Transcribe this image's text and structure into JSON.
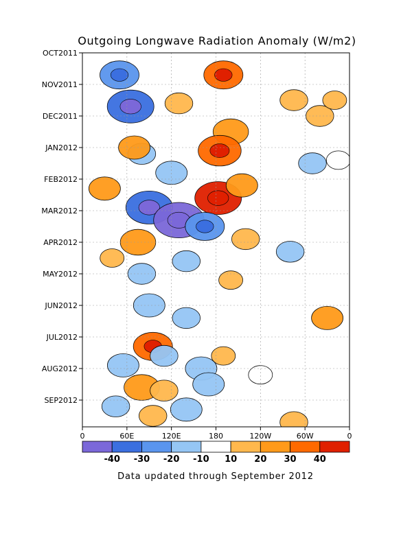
{
  "chart_data": {
    "type": "heatmap",
    "title": "Outgoing Longwave Radiation Anomaly (W/m2)",
    "xlabel": "",
    "ylabel": "",
    "x_tick_labels": [
      "0",
      "60E",
      "120E",
      "180",
      "120W",
      "60W",
      "0"
    ],
    "x_range": [
      0,
      360
    ],
    "y_tick_labels": [
      "OCT2011",
      "NOV2011",
      "DEC2011",
      "JAN2012",
      "FEB2012",
      "MAR2012",
      "APR2012",
      "MAY2012",
      "JUN2012",
      "JUL2012",
      "AUG2012",
      "SEP2012"
    ],
    "grid": true,
    "colorbar": {
      "levels": [
        -50,
        -40,
        -30,
        -20,
        -10,
        10,
        20,
        30,
        40,
        50
      ],
      "tick_labels": [
        "-40",
        "-30",
        "-20",
        "-10",
        "10",
        "20",
        "30",
        "40"
      ],
      "colors": [
        "#7b68d9",
        "#3b6fe0",
        "#5a95ee",
        "#95c6f5",
        "#ffffff",
        "#ffb84d",
        "#ff9a1a",
        "#ff6a00",
        "#e02000"
      ]
    },
    "anomaly_features": [
      {
        "lon": 285,
        "month": 1.5,
        "value": 15
      },
      {
        "lon": 50,
        "month": 0.7,
        "value": -30
      },
      {
        "lon": 65,
        "month": 1.7,
        "value": -40
      },
      {
        "lon": 130,
        "month": 1.6,
        "value": 15
      },
      {
        "lon": 190,
        "month": 0.7,
        "value": 30
      },
      {
        "lon": 200,
        "month": 2.5,
        "value": 25
      },
      {
        "lon": 185,
        "month": 3.1,
        "value": 35
      },
      {
        "lon": 183,
        "month": 4.6,
        "value": 40
      },
      {
        "lon": 215,
        "month": 4.2,
        "value": 20
      },
      {
        "lon": 320,
        "month": 2.0,
        "value": 15
      },
      {
        "lon": 340,
        "month": 1.5,
        "value": 10
      },
      {
        "lon": 310,
        "month": 3.5,
        "value": -15
      },
      {
        "lon": 345,
        "month": 3.4,
        "value": -10
      },
      {
        "lon": 80,
        "month": 3.2,
        "value": -15
      },
      {
        "lon": 30,
        "month": 4.3,
        "value": 20
      },
      {
        "lon": 120,
        "month": 3.8,
        "value": -20
      },
      {
        "lon": 70,
        "month": 3.0,
        "value": 20
      },
      {
        "lon": 90,
        "month": 4.9,
        "value": -40
      },
      {
        "lon": 130,
        "month": 5.3,
        "value": -45
      },
      {
        "lon": 165,
        "month": 5.5,
        "value": -30
      },
      {
        "lon": 220,
        "month": 5.9,
        "value": 15
      },
      {
        "lon": 75,
        "month": 6.0,
        "value": 25
      },
      {
        "lon": 40,
        "month": 6.5,
        "value": 10
      },
      {
        "lon": 280,
        "month": 6.3,
        "value": -15
      },
      {
        "lon": 80,
        "month": 7.0,
        "value": -15
      },
      {
        "lon": 140,
        "month": 6.6,
        "value": -15
      },
      {
        "lon": 200,
        "month": 7.2,
        "value": 10
      },
      {
        "lon": 330,
        "month": 8.4,
        "value": 20
      },
      {
        "lon": 90,
        "month": 8.0,
        "value": -20
      },
      {
        "lon": 140,
        "month": 8.4,
        "value": -15
      },
      {
        "lon": 95,
        "month": 9.3,
        "value": 30
      },
      {
        "lon": 190,
        "month": 9.6,
        "value": 10
      },
      {
        "lon": 55,
        "month": 9.9,
        "value": -20
      },
      {
        "lon": 110,
        "month": 9.6,
        "value": -15
      },
      {
        "lon": 160,
        "month": 10.0,
        "value": -20
      },
      {
        "lon": 80,
        "month": 10.6,
        "value": 25
      },
      {
        "lon": 110,
        "month": 10.7,
        "value": 15
      },
      {
        "lon": 170,
        "month": 10.5,
        "value": -20
      },
      {
        "lon": 240,
        "month": 10.2,
        "value": -10
      },
      {
        "lon": 140,
        "month": 11.3,
        "value": -20
      },
      {
        "lon": 95,
        "month": 11.5,
        "value": 15
      },
      {
        "lon": 285,
        "month": 11.7,
        "value": 15
      },
      {
        "lon": 45,
        "month": 11.2,
        "value": -15
      }
    ]
  },
  "footer_text": "Data updated through September 2012"
}
